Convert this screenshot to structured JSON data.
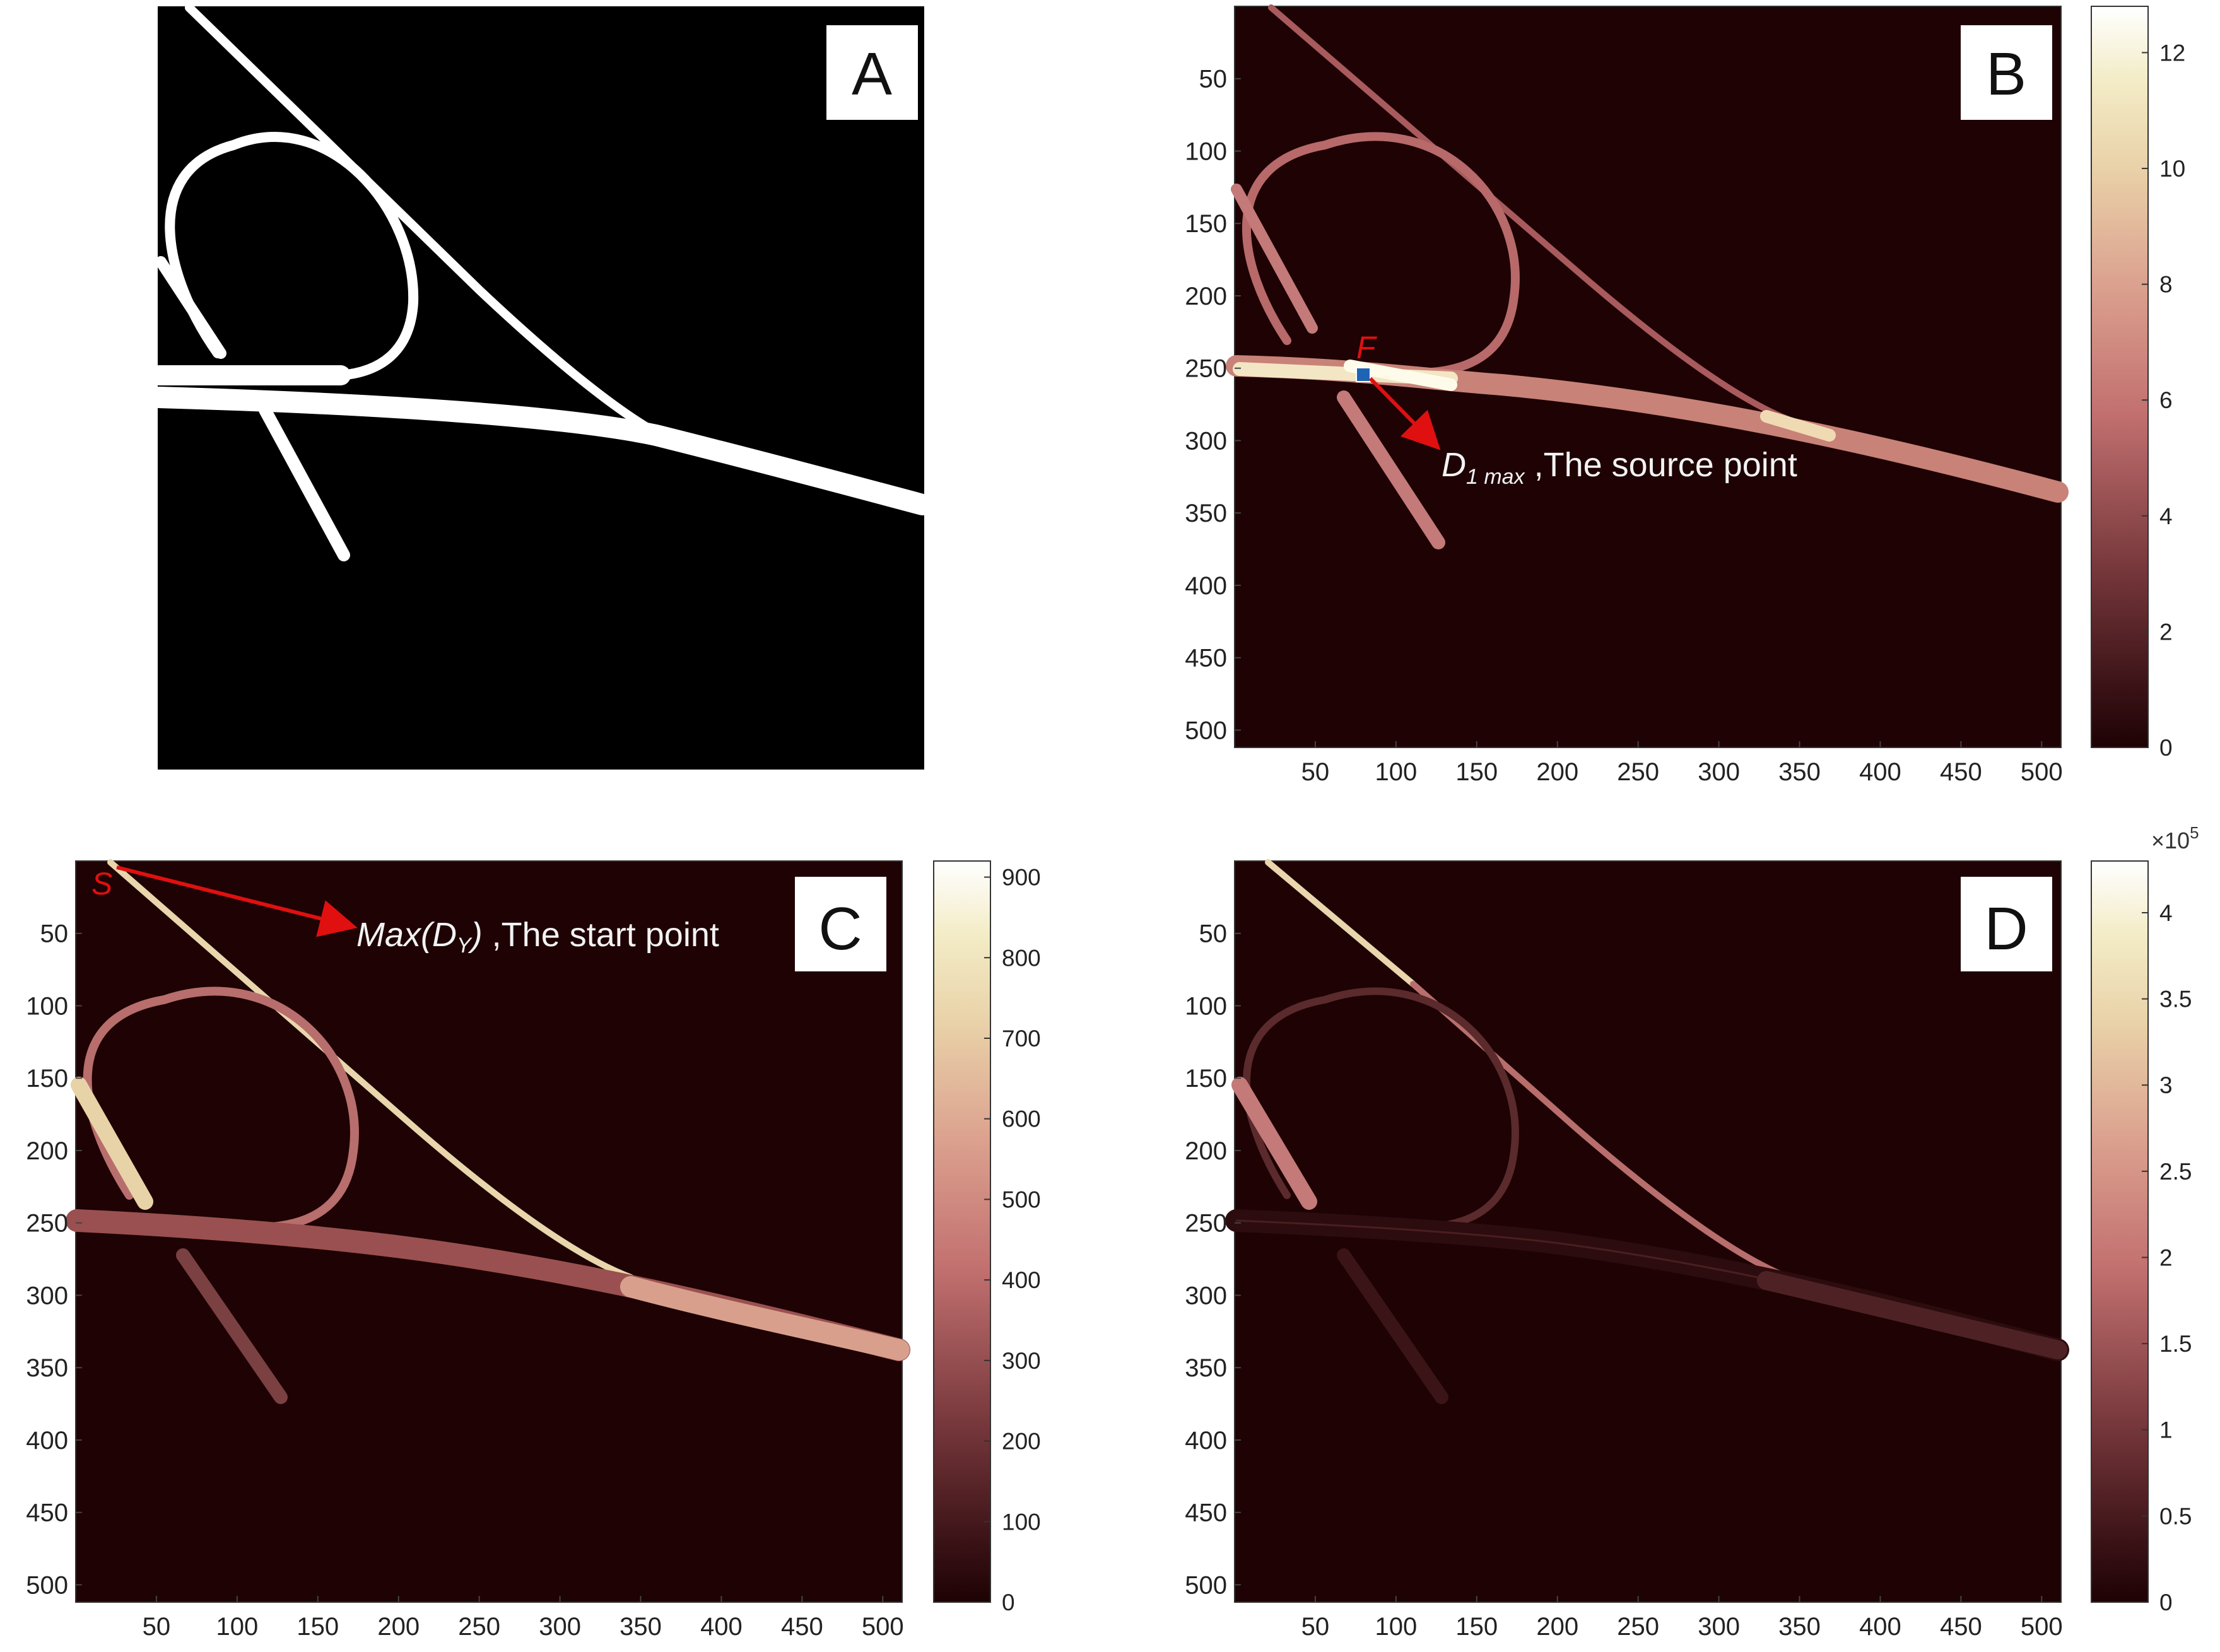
{
  "panels": {
    "A": {
      "label": "A"
    },
    "B": {
      "label": "B",
      "colorbar_ticks": [
        "0",
        "2",
        "4",
        "6",
        "8",
        "10",
        "12"
      ],
      "point_label": "F",
      "annotation": {
        "main": "D",
        "sub1": "1 max",
        "rest": " ,The source point"
      }
    },
    "C": {
      "label": "C",
      "colorbar_ticks": [
        "0",
        "100",
        "200",
        "300",
        "400",
        "500",
        "600",
        "700",
        "800",
        "900"
      ],
      "point_label": "S",
      "annotation": {
        "main": "Max(D",
        "sub1": "Y",
        "close": ")",
        "rest": " ,The start point"
      }
    },
    "D": {
      "label": "D",
      "colorbar_ticks": [
        "0",
        "0.5",
        "1",
        "1.5",
        "2",
        "2.5",
        "3",
        "3.5",
        "4"
      ],
      "exponent": {
        "base": "×10",
        "power": "5"
      }
    }
  },
  "axes": {
    "y_ticks": [
      "50",
      "100",
      "150",
      "200",
      "250",
      "300",
      "350",
      "400",
      "450",
      "500"
    ],
    "x_ticks": [
      "50",
      "100",
      "150",
      "200",
      "250",
      "300",
      "350",
      "400",
      "450",
      "500"
    ]
  },
  "colors": {
    "map_background": "#1e0204",
    "binary_background": "#000000",
    "binary_foreground": "#ffffff",
    "arrow": "#e01010",
    "marker": "#1f64b4",
    "colormap": [
      "#1e0204",
      "#4a1f22",
      "#7a3a3e",
      "#b55f62",
      "#d98f86",
      "#e9c9a4",
      "#f2ecc2",
      "#ffffff"
    ]
  }
}
